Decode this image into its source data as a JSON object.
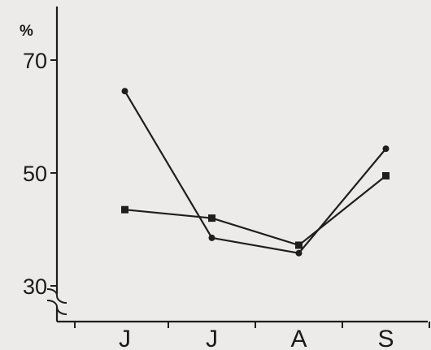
{
  "chart_data": {
    "type": "line",
    "unit_label": "%",
    "categories": [
      "J",
      "J",
      "A",
      "S"
    ],
    "yticks": [
      30,
      50,
      70
    ],
    "ylim": [
      30,
      79
    ],
    "axis_break": true,
    "grid": false,
    "legend": "none",
    "series": [
      {
        "marker": "circle",
        "values": [
          64.5,
          38.5,
          35.8,
          54.3
        ]
      },
      {
        "marker": "square",
        "values": [
          43.5,
          42.0,
          37.2,
          49.5
        ]
      }
    ],
    "colors": {
      "line": "#1e1e1e",
      "background": "#ecebea"
    }
  }
}
